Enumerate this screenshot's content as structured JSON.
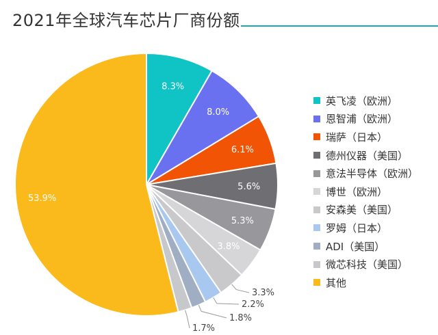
{
  "header": {
    "title": "2021年全球汽车芯片厂商份额"
  },
  "colors": {
    "accent_line": "#1aa6b7"
  },
  "chart_data": {
    "type": "pie",
    "title": "2021年全球汽车芯片厂商份额",
    "legend_position": "right",
    "start": "12 o'clock",
    "direction": "clockwise",
    "slices": [
      {
        "name": "英飞凌（欧洲）",
        "value": 8.3,
        "label": "8.3%",
        "color": "#10c3c4"
      },
      {
        "name": "恩智浦（欧洲）",
        "value": 8.0,
        "label": "8.0%",
        "color": "#6a71f0"
      },
      {
        "name": "瑞萨（日本）",
        "value": 6.1,
        "label": "6.1%",
        "color": "#f25405"
      },
      {
        "name": "德州仪器（美国）",
        "value": 5.6,
        "label": "5.6%",
        "color": "#6f6f73"
      },
      {
        "name": "意法半导体（欧洲）",
        "value": 5.3,
        "label": "5.3%",
        "color": "#98989c"
      },
      {
        "name": "博世（欧洲）",
        "value": 3.8,
        "label": "3.8%",
        "color": "#d6d6d9"
      },
      {
        "name": "安森美（美国）",
        "value": 3.3,
        "label": "3.3%",
        "color": "#c9c9cc"
      },
      {
        "name": "罗姆（日本）",
        "value": 2.2,
        "label": "2.2%",
        "color": "#a9c8f0"
      },
      {
        "name": "ADI（美国）",
        "value": 1.8,
        "label": "1.8%",
        "color": "#a0aec3"
      },
      {
        "name": "微芯科技（美国）",
        "value": 1.7,
        "label": "1.7%",
        "color": "#c6c8cc"
      },
      {
        "name": "其他",
        "value": 53.9,
        "label": "53.9%",
        "color": "#fbba1c"
      }
    ]
  }
}
